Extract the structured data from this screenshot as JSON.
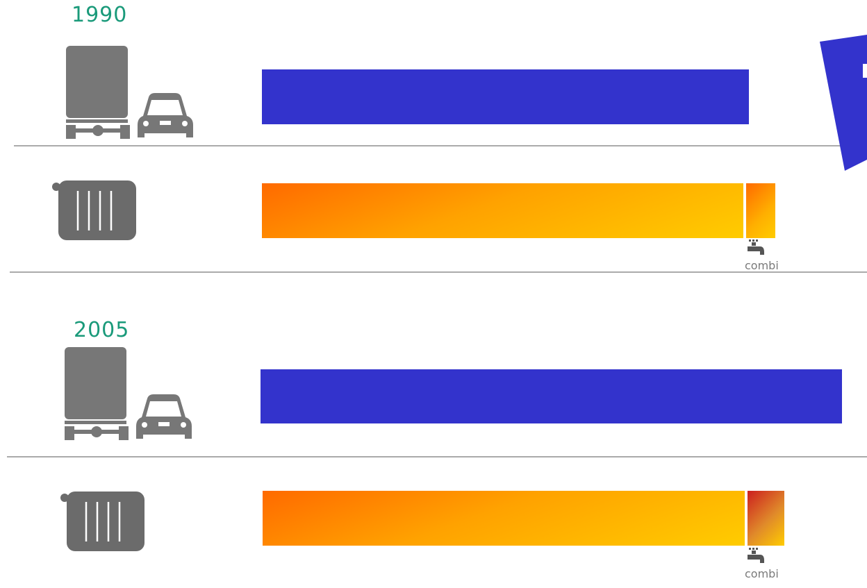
{
  "chart_data": [
    {
      "type": "bar",
      "title": "1990",
      "series": [
        {
          "category": "transport",
          "icon": "truck-and-car-icon",
          "value": 100,
          "color": "#3333cc"
        },
        {
          "category": "heating",
          "icon": "radiator-icon",
          "value": 99,
          "color": "#ff9a00"
        },
        {
          "category": "combi",
          "icon": "tap-icon",
          "label": "combi",
          "value": 6.3,
          "color": "#ffb000"
        }
      ]
    },
    {
      "type": "bar",
      "title": "2005",
      "series": [
        {
          "category": "transport",
          "icon": "truck-and-car-icon",
          "value": 119.7,
          "color": "#3333cc"
        },
        {
          "category": "heating",
          "icon": "radiator-icon",
          "value": 99.1,
          "color": "#ff9a00"
        },
        {
          "category": "combi",
          "icon": "tap-icon",
          "label": "combi",
          "value": 7.4,
          "color": "#e0602a"
        }
      ]
    }
  ],
  "colors": {
    "year_text": "#1a9a7a",
    "icon_gray": "#777777",
    "transport": "#3333cc",
    "heat_start": "#ff6a00",
    "heat_end": "#ffcc00"
  }
}
